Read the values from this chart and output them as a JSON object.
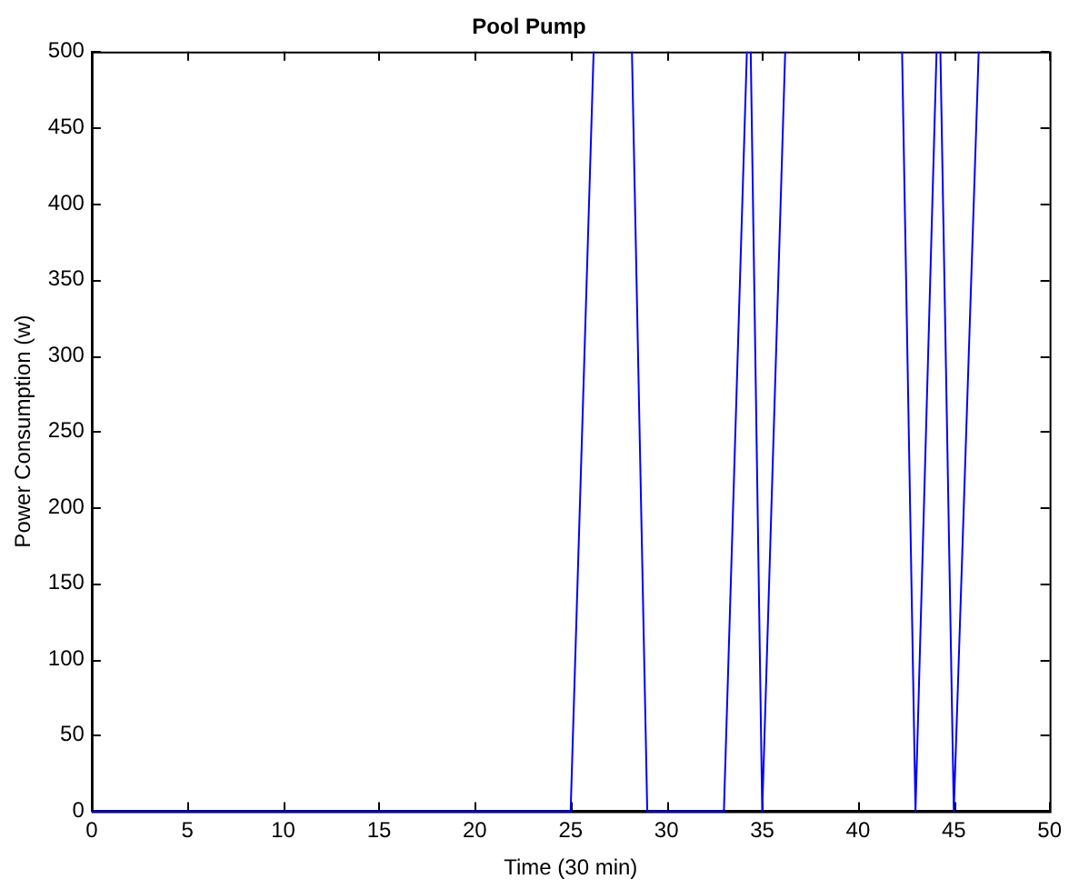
{
  "chart_data": {
    "type": "line",
    "title": "Pool Pump",
    "xlabel": "Time (30 min)",
    "ylabel": "Power Consumption (w)",
    "xlim": [
      0,
      50
    ],
    "xticks": [
      0,
      5,
      10,
      15,
      20,
      25,
      30,
      35,
      40,
      45,
      50
    ],
    "ylim": [
      0,
      500
    ],
    "yticks": [
      0,
      50,
      100,
      150,
      200,
      250,
      300,
      350,
      400,
      450,
      500
    ],
    "grid": false,
    "legend": false,
    "marker": "none",
    "line_style": "solid",
    "series": [
      {
        "color": "#0000ff",
        "x": [
          0,
          25,
          26.2,
          27.2,
          28.2,
          29,
          33,
          34.2,
          34.3,
          34.4,
          35,
          36.2,
          39.2,
          42.3,
          43,
          44.1,
          44.2,
          44.3,
          45,
          46.3
        ],
        "values": [
          0,
          0,
          500,
          null,
          500,
          0,
          0,
          500,
          null,
          500,
          0,
          500,
          null,
          500,
          0,
          500,
          null,
          500,
          0,
          500
        ]
      }
    ]
  }
}
